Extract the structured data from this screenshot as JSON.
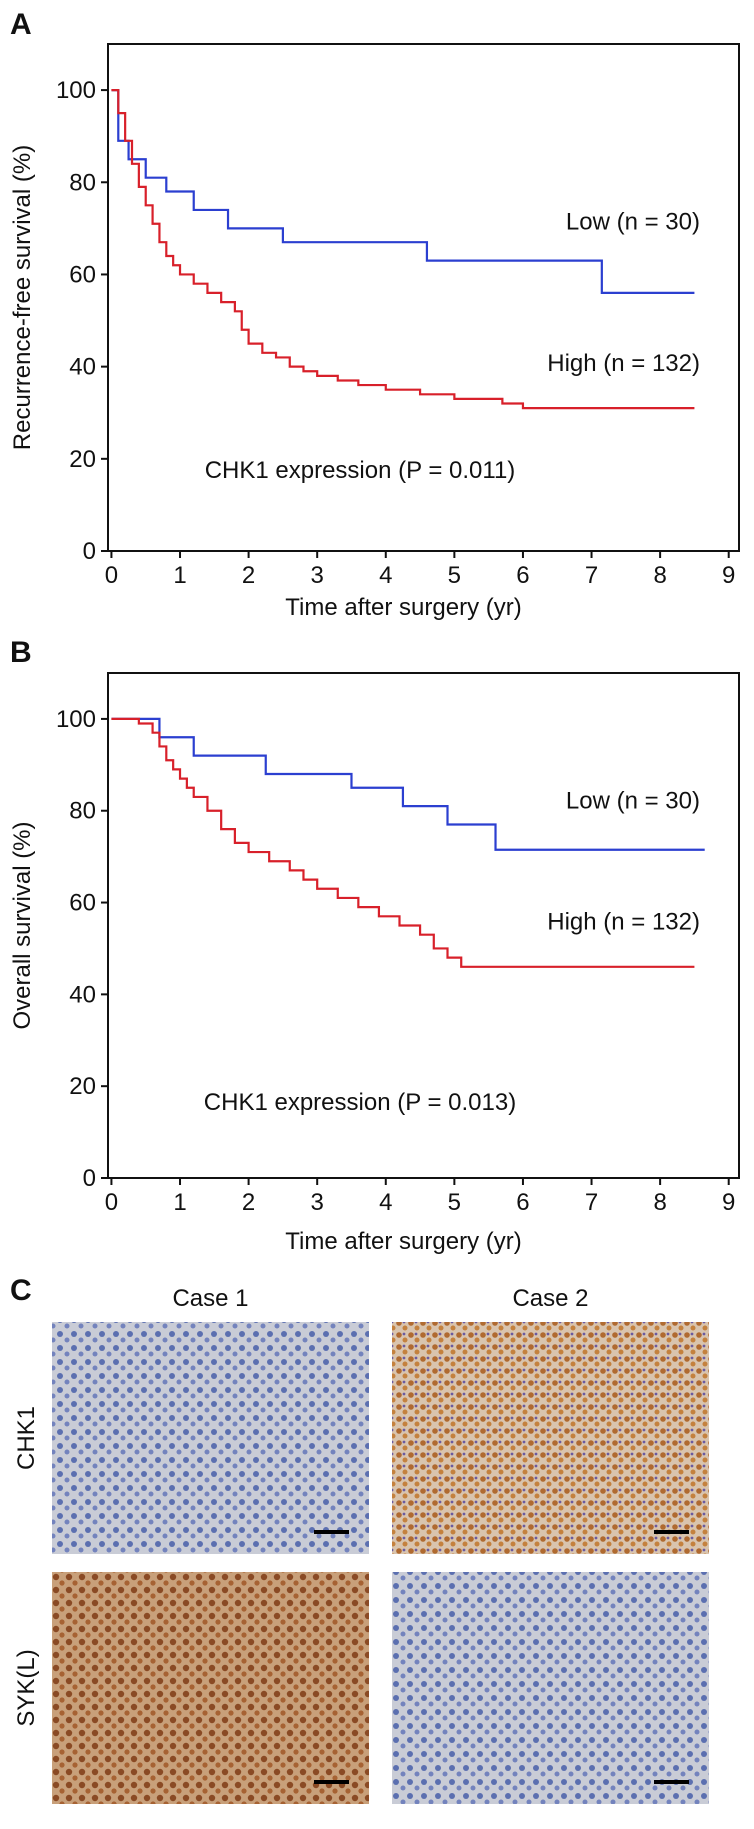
{
  "chart_data": [
    {
      "type": "step",
      "panel_label": "A",
      "ylabel": "Recurrence-free survival (%)",
      "xlabel": "Time after surgery (yr)",
      "xlim": [
        -0.05,
        9.15
      ],
      "ylim": [
        0,
        110
      ],
      "xticks": [
        0,
        1,
        2,
        3,
        4,
        5,
        6,
        7,
        8,
        9
      ],
      "yticks": [
        0,
        20,
        40,
        60,
        80,
        100
      ],
      "annotations": [
        "Low (n = 30)",
        "High (n = 132)",
        "CHK1 expression (P = 0.011)"
      ],
      "series": [
        {
          "name": "Low",
          "color": "#2b3fd0",
          "x": [
            0,
            0.1,
            0.25,
            0.5,
            0.8,
            1.2,
            1.7,
            2.5,
            4.6,
            7.15,
            8.5
          ],
          "values": [
            100,
            89,
            85,
            81,
            78,
            74,
            70,
            67,
            63,
            56,
            56
          ]
        },
        {
          "name": "High",
          "color": "#d8202a",
          "x": [
            0,
            0.1,
            0.2,
            0.3,
            0.4,
            0.5,
            0.6,
            0.7,
            0.8,
            0.9,
            1.0,
            1.2,
            1.4,
            1.6,
            1.8,
            1.9,
            2.0,
            2.2,
            2.4,
            2.6,
            2.8,
            3.0,
            3.3,
            3.6,
            4.0,
            4.5,
            5.0,
            5.7,
            6.0,
            8.5
          ],
          "values": [
            100,
            95,
            89,
            84,
            79,
            75,
            71,
            67,
            64,
            62,
            60,
            58,
            56,
            54,
            52,
            48,
            45,
            43,
            42,
            40,
            39,
            38,
            37,
            36,
            35,
            34,
            33,
            32,
            31,
            31
          ]
        }
      ]
    },
    {
      "type": "step",
      "panel_label": "B",
      "ylabel": "Overall survival (%)",
      "xlabel": "Time after surgery (yr)",
      "xlim": [
        -0.05,
        9.15
      ],
      "ylim": [
        0,
        110
      ],
      "xticks": [
        0,
        1,
        2,
        3,
        4,
        5,
        6,
        7,
        8,
        9
      ],
      "yticks": [
        0,
        20,
        40,
        60,
        80,
        100
      ],
      "annotations": [
        "Low (n = 30)",
        "High (n = 132)",
        "CHK1 expression (P = 0.013)"
      ],
      "series": [
        {
          "name": "Low",
          "color": "#2b3fd0",
          "x": [
            0,
            0.7,
            1.2,
            2.25,
            3.5,
            4.25,
            4.9,
            5.6,
            8.65
          ],
          "values": [
            100,
            96,
            92,
            88,
            85,
            81,
            77,
            71.5,
            71.5
          ]
        },
        {
          "name": "High",
          "color": "#d8202a",
          "x": [
            0,
            0.4,
            0.6,
            0.7,
            0.8,
            0.9,
            1.0,
            1.1,
            1.2,
            1.4,
            1.6,
            1.8,
            2.0,
            2.3,
            2.6,
            2.8,
            3.0,
            3.3,
            3.6,
            3.9,
            4.2,
            4.5,
            4.7,
            4.9,
            5.1,
            8.5
          ],
          "values": [
            100,
            99,
            97,
            94,
            91,
            89,
            87,
            85,
            83,
            80,
            76,
            73,
            71,
            69,
            67,
            65,
            63,
            61,
            59,
            57,
            55,
            53,
            50,
            48,
            46,
            46
          ]
        }
      ]
    }
  ],
  "panel_c": {
    "label": "C",
    "columns": [
      "Case 1",
      "Case 2"
    ],
    "rows": [
      "CHK1",
      "SYK(L)"
    ]
  }
}
